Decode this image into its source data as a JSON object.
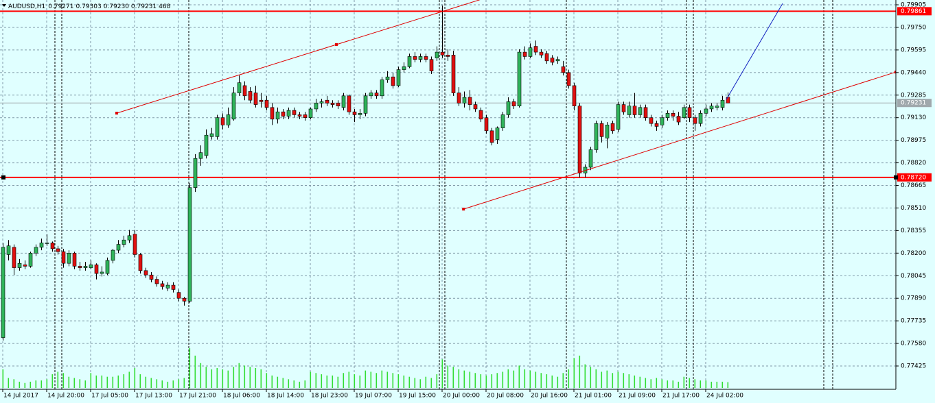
{
  "chart_data": {
    "type": "candlestick",
    "header": {
      "symbol": "AUDUSD,H1",
      "values": [
        0.79271,
        0.79303,
        0.7923,
        0.79231,
        468
      ],
      "value_labels": [
        "0.79271",
        "0.79303",
        "0.79230",
        "0.79231",
        "468"
      ]
    },
    "ylim": [
      0.77265,
      0.79938
    ],
    "yticks": [
      0.79905,
      {
        "value": 0.7975,
        "label": "0.79750"
      },
      0.79595,
      {
        "value": 0.7944,
        "label": "0.79440"
      },
      0.79285,
      {
        "value": 0.7913,
        "label": "0.79130"
      },
      0.78975,
      {
        "value": 0.7882,
        "label": "0.78820"
      },
      0.78665,
      {
        "value": 0.7851,
        "label": "0.78510"
      },
      0.78355,
      {
        "value": 0.782,
        "label": "0.78200"
      },
      0.78045,
      {
        "value": 0.7789,
        "label": "0.77890"
      },
      0.77735,
      {
        "value": 0.7758,
        "label": "0.77580"
      },
      0.77425
    ],
    "grid": true,
    "bull_color": "#2fb35a",
    "bear_color": "#e01010",
    "volume_color": "#33dd33",
    "x_labels": [
      {
        "index": 0,
        "label": "14 Jul 2017"
      },
      {
        "index": 8,
        "label": "14 Jul 20:00"
      },
      {
        "index": 16,
        "label": "17 Jul 05:00"
      },
      {
        "index": 24,
        "label": "17 Jul 13:00"
      },
      {
        "index": 32,
        "label": "17 Jul 21:00"
      },
      {
        "index": 40,
        "label": "18 Jul 06:00"
      },
      {
        "index": 48,
        "label": "18 Jul 14:00"
      },
      {
        "index": 56,
        "label": "18 Jul 23:00"
      },
      {
        "index": 64,
        "label": "19 Jul 07:00"
      },
      {
        "index": 72,
        "label": "19 Jul 15:00"
      },
      {
        "index": 80,
        "label": "20 Jul 00:00"
      },
      {
        "index": 88,
        "label": "20 Jul 08:00"
      },
      {
        "index": 96,
        "label": "20 Jul 16:00"
      },
      {
        "index": 104,
        "label": "21 Jul 01:00"
      },
      {
        "index": 112,
        "label": "21 Jul 09:00"
      },
      {
        "index": 120,
        "label": "21 Jul 17:00"
      },
      {
        "index": 128,
        "label": "24 Jul 02:00"
      }
    ],
    "candles": [
      [
        0.7762,
        0.7827,
        0.776,
        0.7824
      ],
      [
        0.7819,
        0.7829,
        0.7815,
        0.7825
      ],
      [
        0.7824,
        0.7826,
        0.7805,
        0.781
      ],
      [
        0.781,
        0.7816,
        0.7808,
        0.7813
      ],
      [
        0.7812,
        0.7815,
        0.7809,
        0.7811
      ],
      [
        0.7811,
        0.7821,
        0.781,
        0.782
      ],
      [
        0.782,
        0.7826,
        0.7818,
        0.7824
      ],
      [
        0.7824,
        0.783,
        0.7822,
        0.7827
      ],
      [
        0.7827,
        0.7833,
        0.7825,
        0.7827
      ],
      [
        0.7827,
        0.7828,
        0.7821,
        0.7823
      ],
      [
        0.7823,
        0.7825,
        0.7819,
        0.7821
      ],
      [
        0.7821,
        0.7823,
        0.781,
        0.7813
      ],
      [
        0.7813,
        0.7822,
        0.7811,
        0.782
      ],
      [
        0.782,
        0.7821,
        0.7809,
        0.7811
      ],
      [
        0.7811,
        0.7814,
        0.7808,
        0.781
      ],
      [
        0.781,
        0.7814,
        0.7808,
        0.7811
      ],
      [
        0.781,
        0.7815,
        0.7809,
        0.7812
      ],
      [
        0.7812,
        0.7813,
        0.7802,
        0.7806
      ],
      [
        0.7806,
        0.7811,
        0.7804,
        0.7807
      ],
      [
        0.7806,
        0.7817,
        0.7805,
        0.7815
      ],
      [
        0.7815,
        0.7823,
        0.7813,
        0.7822
      ],
      [
        0.7822,
        0.7829,
        0.782,
        0.7826
      ],
      [
        0.7826,
        0.7832,
        0.7824,
        0.7829
      ],
      [
        0.7829,
        0.7836,
        0.7827,
        0.7832
      ],
      [
        0.7833,
        0.7836,
        0.7817,
        0.7819
      ],
      [
        0.7819,
        0.782,
        0.7806,
        0.7808
      ],
      [
        0.7808,
        0.781,
        0.7803,
        0.7805
      ],
      [
        0.7805,
        0.7807,
        0.78,
        0.7802
      ],
      [
        0.7802,
        0.7804,
        0.7797,
        0.7799
      ],
      [
        0.7799,
        0.7801,
        0.7795,
        0.7797
      ],
      [
        0.7796,
        0.78,
        0.7794,
        0.7798
      ],
      [
        0.7798,
        0.78,
        0.7793,
        0.7795
      ],
      [
        0.7793,
        0.7795,
        0.7787,
        0.7789
      ],
      [
        0.7789,
        0.779,
        0.7784,
        0.7787
      ],
      [
        0.7787,
        0.7868,
        0.7786,
        0.7865
      ],
      [
        0.7865,
        0.7888,
        0.7862,
        0.7885
      ],
      [
        0.7885,
        0.7894,
        0.788,
        0.7889
      ],
      [
        0.7887,
        0.7905,
        0.7885,
        0.7901
      ],
      [
        0.79,
        0.7906,
        0.7898,
        0.7902
      ],
      [
        0.79,
        0.7915,
        0.7898,
        0.7913
      ],
      [
        0.7913,
        0.7916,
        0.7905,
        0.7908
      ],
      [
        0.7908,
        0.792,
        0.7906,
        0.7915
      ],
      [
        0.7912,
        0.7934,
        0.7911,
        0.793
      ],
      [
        0.793,
        0.7942,
        0.7928,
        0.7937
      ],
      [
        0.7935,
        0.7938,
        0.7925,
        0.7928
      ],
      [
        0.7931,
        0.7934,
        0.7923,
        0.7925
      ],
      [
        0.793,
        0.7935,
        0.792,
        0.7922
      ],
      [
        0.7925,
        0.793,
        0.792,
        0.7924
      ],
      [
        0.7925,
        0.7928,
        0.7918,
        0.792
      ],
      [
        0.792,
        0.7923,
        0.7908,
        0.7912
      ],
      [
        0.7912,
        0.792,
        0.7909,
        0.7917
      ],
      [
        0.7917,
        0.7919,
        0.7912,
        0.7914
      ],
      [
        0.7914,
        0.792,
        0.7912,
        0.7918
      ],
      [
        0.7918,
        0.792,
        0.7913,
        0.7915
      ],
      [
        0.7915,
        0.7917,
        0.7912,
        0.7914
      ],
      [
        0.7915,
        0.7917,
        0.7911,
        0.7913
      ],
      [
        0.7913,
        0.792,
        0.7912,
        0.7919
      ],
      [
        0.7919,
        0.7926,
        0.7917,
        0.7923
      ],
      [
        0.7923,
        0.7926,
        0.792,
        0.7924
      ],
      [
        0.7925,
        0.7928,
        0.7921,
        0.7923
      ],
      [
        0.7923,
        0.7925,
        0.792,
        0.7922
      ],
      [
        0.7923,
        0.7925,
        0.7919,
        0.7921
      ],
      [
        0.792,
        0.793,
        0.7918,
        0.7928
      ],
      [
        0.7928,
        0.7929,
        0.7915,
        0.7917
      ],
      [
        0.7917,
        0.7919,
        0.791,
        0.7915
      ],
      [
        0.7915,
        0.7919,
        0.7912,
        0.7916
      ],
      [
        0.7916,
        0.793,
        0.7914,
        0.7928
      ],
      [
        0.7928,
        0.7932,
        0.7926,
        0.793
      ],
      [
        0.793,
        0.7932,
        0.7926,
        0.7928
      ],
      [
        0.7928,
        0.7941,
        0.7926,
        0.7939
      ],
      [
        0.7939,
        0.7945,
        0.7937,
        0.7941
      ],
      [
        0.7941,
        0.7944,
        0.7933,
        0.7935
      ],
      [
        0.7935,
        0.7948,
        0.7934,
        0.7946
      ],
      [
        0.7946,
        0.7951,
        0.7944,
        0.7948
      ],
      [
        0.7948,
        0.7957,
        0.7947,
        0.7955
      ],
      [
        0.7955,
        0.7958,
        0.7951,
        0.7953
      ],
      [
        0.7953,
        0.7957,
        0.7951,
        0.7955
      ],
      [
        0.7955,
        0.7957,
        0.7951,
        0.7953
      ],
      [
        0.7953,
        0.7955,
        0.7943,
        0.7945
      ],
      [
        0.7954,
        0.7962,
        0.7952,
        0.7958
      ],
      [
        0.7958,
        0.799,
        0.7954,
        0.7956
      ],
      [
        0.7956,
        0.796,
        0.7952,
        0.7955
      ],
      [
        0.7956,
        0.7959,
        0.7928,
        0.793
      ],
      [
        0.793,
        0.7934,
        0.7921,
        0.7923
      ],
      [
        0.7923,
        0.7931,
        0.792,
        0.7927
      ],
      [
        0.7927,
        0.7932,
        0.7918,
        0.7922
      ],
      [
        0.7922,
        0.7924,
        0.7917,
        0.7919
      ],
      [
        0.7918,
        0.792,
        0.791,
        0.7912
      ],
      [
        0.7913,
        0.7915,
        0.7902,
        0.7904
      ],
      [
        0.7904,
        0.7906,
        0.7894,
        0.7896
      ],
      [
        0.7898,
        0.7907,
        0.7895,
        0.7906
      ],
      [
        0.7906,
        0.7917,
        0.7904,
        0.7915
      ],
      [
        0.7915,
        0.7927,
        0.7913,
        0.7924
      ],
      [
        0.7924,
        0.7926,
        0.7919,
        0.7921
      ],
      [
        0.7921,
        0.796,
        0.792,
        0.7958
      ],
      [
        0.7958,
        0.7962,
        0.7953,
        0.7955
      ],
      [
        0.7955,
        0.7964,
        0.7954,
        0.7961
      ],
      [
        0.7962,
        0.7966,
        0.7956,
        0.7958
      ],
      [
        0.7958,
        0.796,
        0.7954,
        0.7956
      ],
      [
        0.7957,
        0.7959,
        0.795,
        0.7952
      ],
      [
        0.7954,
        0.7956,
        0.7949,
        0.7951
      ],
      [
        0.7952,
        0.7955,
        0.795,
        0.7953
      ],
      [
        0.7948,
        0.7952,
        0.7942,
        0.7944
      ],
      [
        0.7944,
        0.7946,
        0.7933,
        0.7935
      ],
      [
        0.7935,
        0.7937,
        0.7918,
        0.7921
      ],
      [
        0.7921,
        0.7923,
        0.7872,
        0.7875
      ],
      [
        0.7875,
        0.7881,
        0.7872,
        0.7879
      ],
      [
        0.7879,
        0.7893,
        0.7877,
        0.7891
      ],
      [
        0.7891,
        0.7911,
        0.7889,
        0.7909
      ],
      [
        0.7909,
        0.7911,
        0.7896,
        0.79
      ],
      [
        0.7899,
        0.791,
        0.7892,
        0.7908
      ],
      [
        0.7909,
        0.7911,
        0.7902,
        0.7904
      ],
      [
        0.7905,
        0.7924,
        0.7903,
        0.7922
      ],
      [
        0.7922,
        0.7924,
        0.7915,
        0.7917
      ],
      [
        0.7915,
        0.7924,
        0.7913,
        0.7921
      ],
      [
        0.7921,
        0.793,
        0.7913,
        0.7915
      ],
      [
        0.7915,
        0.7922,
        0.7913,
        0.792
      ],
      [
        0.792,
        0.7922,
        0.7911,
        0.7913
      ],
      [
        0.7913,
        0.7915,
        0.7907,
        0.7909
      ],
      [
        0.7909,
        0.7911,
        0.7904,
        0.7907
      ],
      [
        0.7908,
        0.7915,
        0.7906,
        0.7913
      ],
      [
        0.7913,
        0.7918,
        0.7911,
        0.7916
      ],
      [
        0.7916,
        0.7918,
        0.7911,
        0.7914
      ],
      [
        0.7914,
        0.7917,
        0.7908,
        0.791
      ],
      [
        0.7913,
        0.7922,
        0.7912,
        0.792
      ],
      [
        0.792,
        0.7922,
        0.791,
        0.7913
      ],
      [
        0.7913,
        0.7915,
        0.7904,
        0.7909
      ],
      [
        0.7909,
        0.7918,
        0.7907,
        0.7916
      ],
      [
        0.7916,
        0.7922,
        0.7914,
        0.7919
      ],
      [
        0.7919,
        0.7923,
        0.7917,
        0.7921
      ],
      [
        0.792,
        0.7923,
        0.7918,
        0.7921
      ],
      [
        0.792,
        0.7928,
        0.7918,
        0.7925
      ],
      [
        0.79271,
        0.79303,
        0.7923,
        0.79231
      ]
    ],
    "volumes": [
      1500,
      800,
      700,
      500,
      400,
      500,
      600,
      600,
      700,
      1100,
      1300,
      1200,
      900,
      800,
      700,
      600,
      1200,
      1000,
      1000,
      900,
      900,
      1000,
      1100,
      1300,
      1600,
      1100,
      900,
      800,
      700,
      600,
      500,
      600,
      700,
      800,
      3200,
      2600,
      2000,
      1700,
      1500,
      1600,
      1500,
      1400,
      1700,
      2000,
      1800,
      1700,
      1600,
      1500,
      1200,
      1000,
      900,
      800,
      700,
      600,
      500,
      600,
      1300,
      1200,
      1100,
      1000,
      1000,
      900,
      1200,
      1300,
      1100,
      1000,
      1400,
      1300,
      1200,
      1400,
      1300,
      1200,
      1100,
      1000,
      900,
      800,
      700,
      900,
      800,
      1100,
      2300,
      1800,
      1700,
      1500,
      1400,
      1300,
      1200,
      1100,
      1000,
      1100,
      1200,
      1300,
      1500,
      1400,
      1800,
      1500,
      1400,
      1300,
      1200,
      1100,
      1000,
      900,
      1200,
      1500,
      2400,
      2600,
      1900,
      1700,
      1500,
      1300,
      1400,
      1200,
      1300,
      1200,
      1100,
      1000,
      900,
      800,
      700,
      800,
      700,
      600,
      600,
      500,
      900,
      800,
      700,
      600,
      600,
      500,
      500,
      500,
      468
    ],
    "levels": [
      {
        "value": 0.79861,
        "color": "#ff0000"
      },
      {
        "value": 0.7872,
        "label": "0.78720",
        "color": "#ff0000"
      }
    ],
    "current_price": {
      "value": 0.79231,
      "color": "#a0a8ac"
    },
    "trendlines": [
      {
        "color": "#e00000",
        "ray": true,
        "points": [
          [
            20.75,
            0.79161
          ],
          [
            60.75,
            0.79632
          ]
        ]
      },
      {
        "color": "#e00000",
        "ray": true,
        "points": [
          [
            83.9,
            0.78502
          ],
          [
            162.6,
            0.79443
          ]
        ]
      },
      {
        "color": "#1020c0",
        "ray": false,
        "points": [
          [
            131.75,
            0.79255
          ],
          [
            142,
            0.79914
          ]
        ]
      }
    ]
  }
}
